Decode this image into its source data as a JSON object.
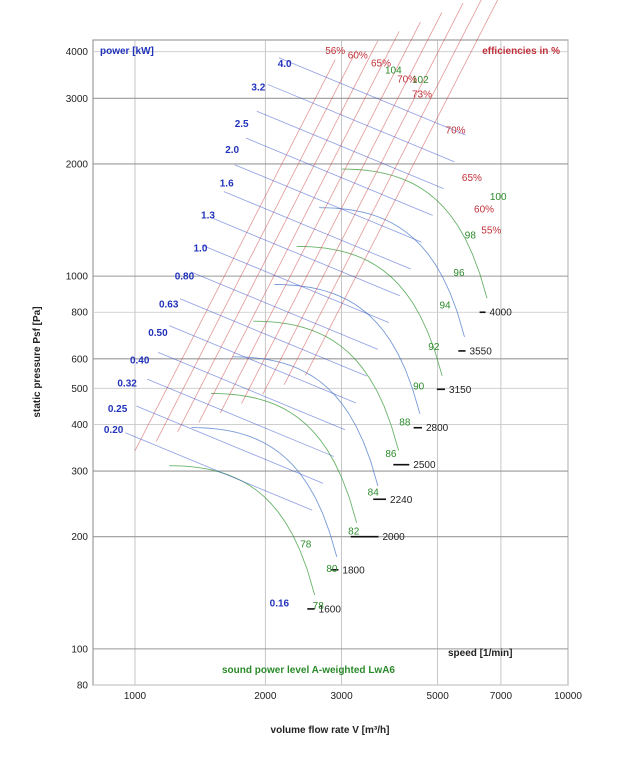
{
  "chart_data": {
    "type": "line",
    "scale": "log-log",
    "xlabel": "volume flow rate  V [m³/h]",
    "ylabel": "static pressure  Psf [Pa]",
    "xlim": [
      800,
      10000
    ],
    "ylim": [
      80,
      4300
    ],
    "x_ticks": [
      1000,
      2000,
      3000,
      5000,
      7000,
      10000
    ],
    "y_ticks": [
      80,
      100,
      200,
      300,
      400,
      500,
      600,
      800,
      1000,
      2000,
      3000,
      4000
    ],
    "grid": true,
    "legend_notes": {
      "power": "power [kW]",
      "efficiency": "efficiencies in %",
      "speed": "speed [1/min]",
      "sound": "sound power level A-weighted LwA6"
    },
    "speed_lines": [
      {
        "rpm": 1600,
        "label": "1600",
        "points": [
          [
            2500,
            128
          ],
          [
            2600,
            128
          ]
        ]
      },
      {
        "rpm": 1800,
        "label": "1800",
        "points": [
          [
            2830,
            163
          ],
          [
            2950,
            163
          ]
        ]
      },
      {
        "rpm": 2000,
        "label": "2000",
        "points": [
          [
            3150,
            200
          ],
          [
            3650,
            200
          ]
        ]
      },
      {
        "rpm": 2240,
        "label": "2240",
        "points": [
          [
            3550,
            252
          ],
          [
            3800,
            252
          ]
        ]
      },
      {
        "rpm": 2500,
        "label": "2500",
        "points": [
          [
            3950,
            312
          ],
          [
            4300,
            312
          ]
        ]
      },
      {
        "rpm": 2800,
        "label": "2800",
        "points": [
          [
            4400,
            392
          ],
          [
            4600,
            392
          ]
        ]
      },
      {
        "rpm": 3150,
        "label": "3150",
        "points": [
          [
            4980,
            497
          ],
          [
            5200,
            497
          ]
        ]
      },
      {
        "rpm": 3550,
        "label": "3550",
        "points": [
          [
            5580,
            630
          ],
          [
            5800,
            630
          ]
        ]
      },
      {
        "rpm": 4000,
        "label": "4000",
        "points": [
          [
            6250,
            800
          ],
          [
            6450,
            800
          ]
        ]
      }
    ],
    "sound_levels": [
      {
        "label": "78",
        "x": 2650,
        "y": 128
      },
      {
        "label": "78",
        "x": 2480,
        "y": 187
      },
      {
        "label": "80",
        "x": 2850,
        "y": 161
      },
      {
        "label": "82",
        "x": 3200,
        "y": 203
      },
      {
        "label": "84",
        "x": 3550,
        "y": 258
      },
      {
        "label": "86",
        "x": 3900,
        "y": 327
      },
      {
        "label": "88",
        "x": 4200,
        "y": 397
      },
      {
        "label": "90",
        "x": 4520,
        "y": 496
      },
      {
        "label": "92",
        "x": 4900,
        "y": 634
      },
      {
        "label": "94",
        "x": 5200,
        "y": 819
      },
      {
        "label": "96",
        "x": 5600,
        "y": 1000
      },
      {
        "label": "98",
        "x": 5950,
        "y": 1260
      },
      {
        "label": "100",
        "x": 6900,
        "y": 1600
      },
      {
        "label": "102",
        "x": 4560,
        "y": 3300
      },
      {
        "label": "104",
        "x": 3950,
        "y": 3500
      }
    ],
    "power_levels": [
      {
        "label": "0.16",
        "x": 2270,
        "y": 130
      },
      {
        "label": "0.20",
        "x": 940,
        "y": 380
      },
      {
        "label": "0.25",
        "x": 960,
        "y": 432
      },
      {
        "label": "0.32",
        "x": 1010,
        "y": 505
      },
      {
        "label": "0.40",
        "x": 1080,
        "y": 583
      },
      {
        "label": "0.50",
        "x": 1190,
        "y": 690
      },
      {
        "label": "0.63",
        "x": 1260,
        "y": 825
      },
      {
        "label": "0.80",
        "x": 1370,
        "y": 980
      },
      {
        "label": "1.0",
        "x": 1470,
        "y": 1163
      },
      {
        "label": "1.3",
        "x": 1530,
        "y": 1427
      },
      {
        "label": "1.6",
        "x": 1690,
        "y": 1740
      },
      {
        "label": "2.0",
        "x": 1740,
        "y": 2142
      },
      {
        "label": "2.5",
        "x": 1830,
        "y": 2515
      },
      {
        "label": "3.2",
        "x": 2000,
        "y": 3150
      },
      {
        "label": "4.0",
        "x": 2300,
        "y": 3640
      }
    ],
    "efficiency_labels": [
      {
        "label": "56%",
        "x": 2900,
        "y": 3940
      },
      {
        "label": "60%",
        "x": 3270,
        "y": 3840
      },
      {
        "label": "65%",
        "x": 3700,
        "y": 3650
      },
      {
        "label": "70%",
        "x": 4250,
        "y": 3310
      },
      {
        "label": "73%",
        "x": 4600,
        "y": 3010
      },
      {
        "label": "70%",
        "x": 5500,
        "y": 2410
      },
      {
        "label": "65%",
        "x": 6000,
        "y": 1800
      },
      {
        "label": "60%",
        "x": 6400,
        "y": 1480
      },
      {
        "label": "55%",
        "x": 6650,
        "y": 1300
      }
    ]
  }
}
